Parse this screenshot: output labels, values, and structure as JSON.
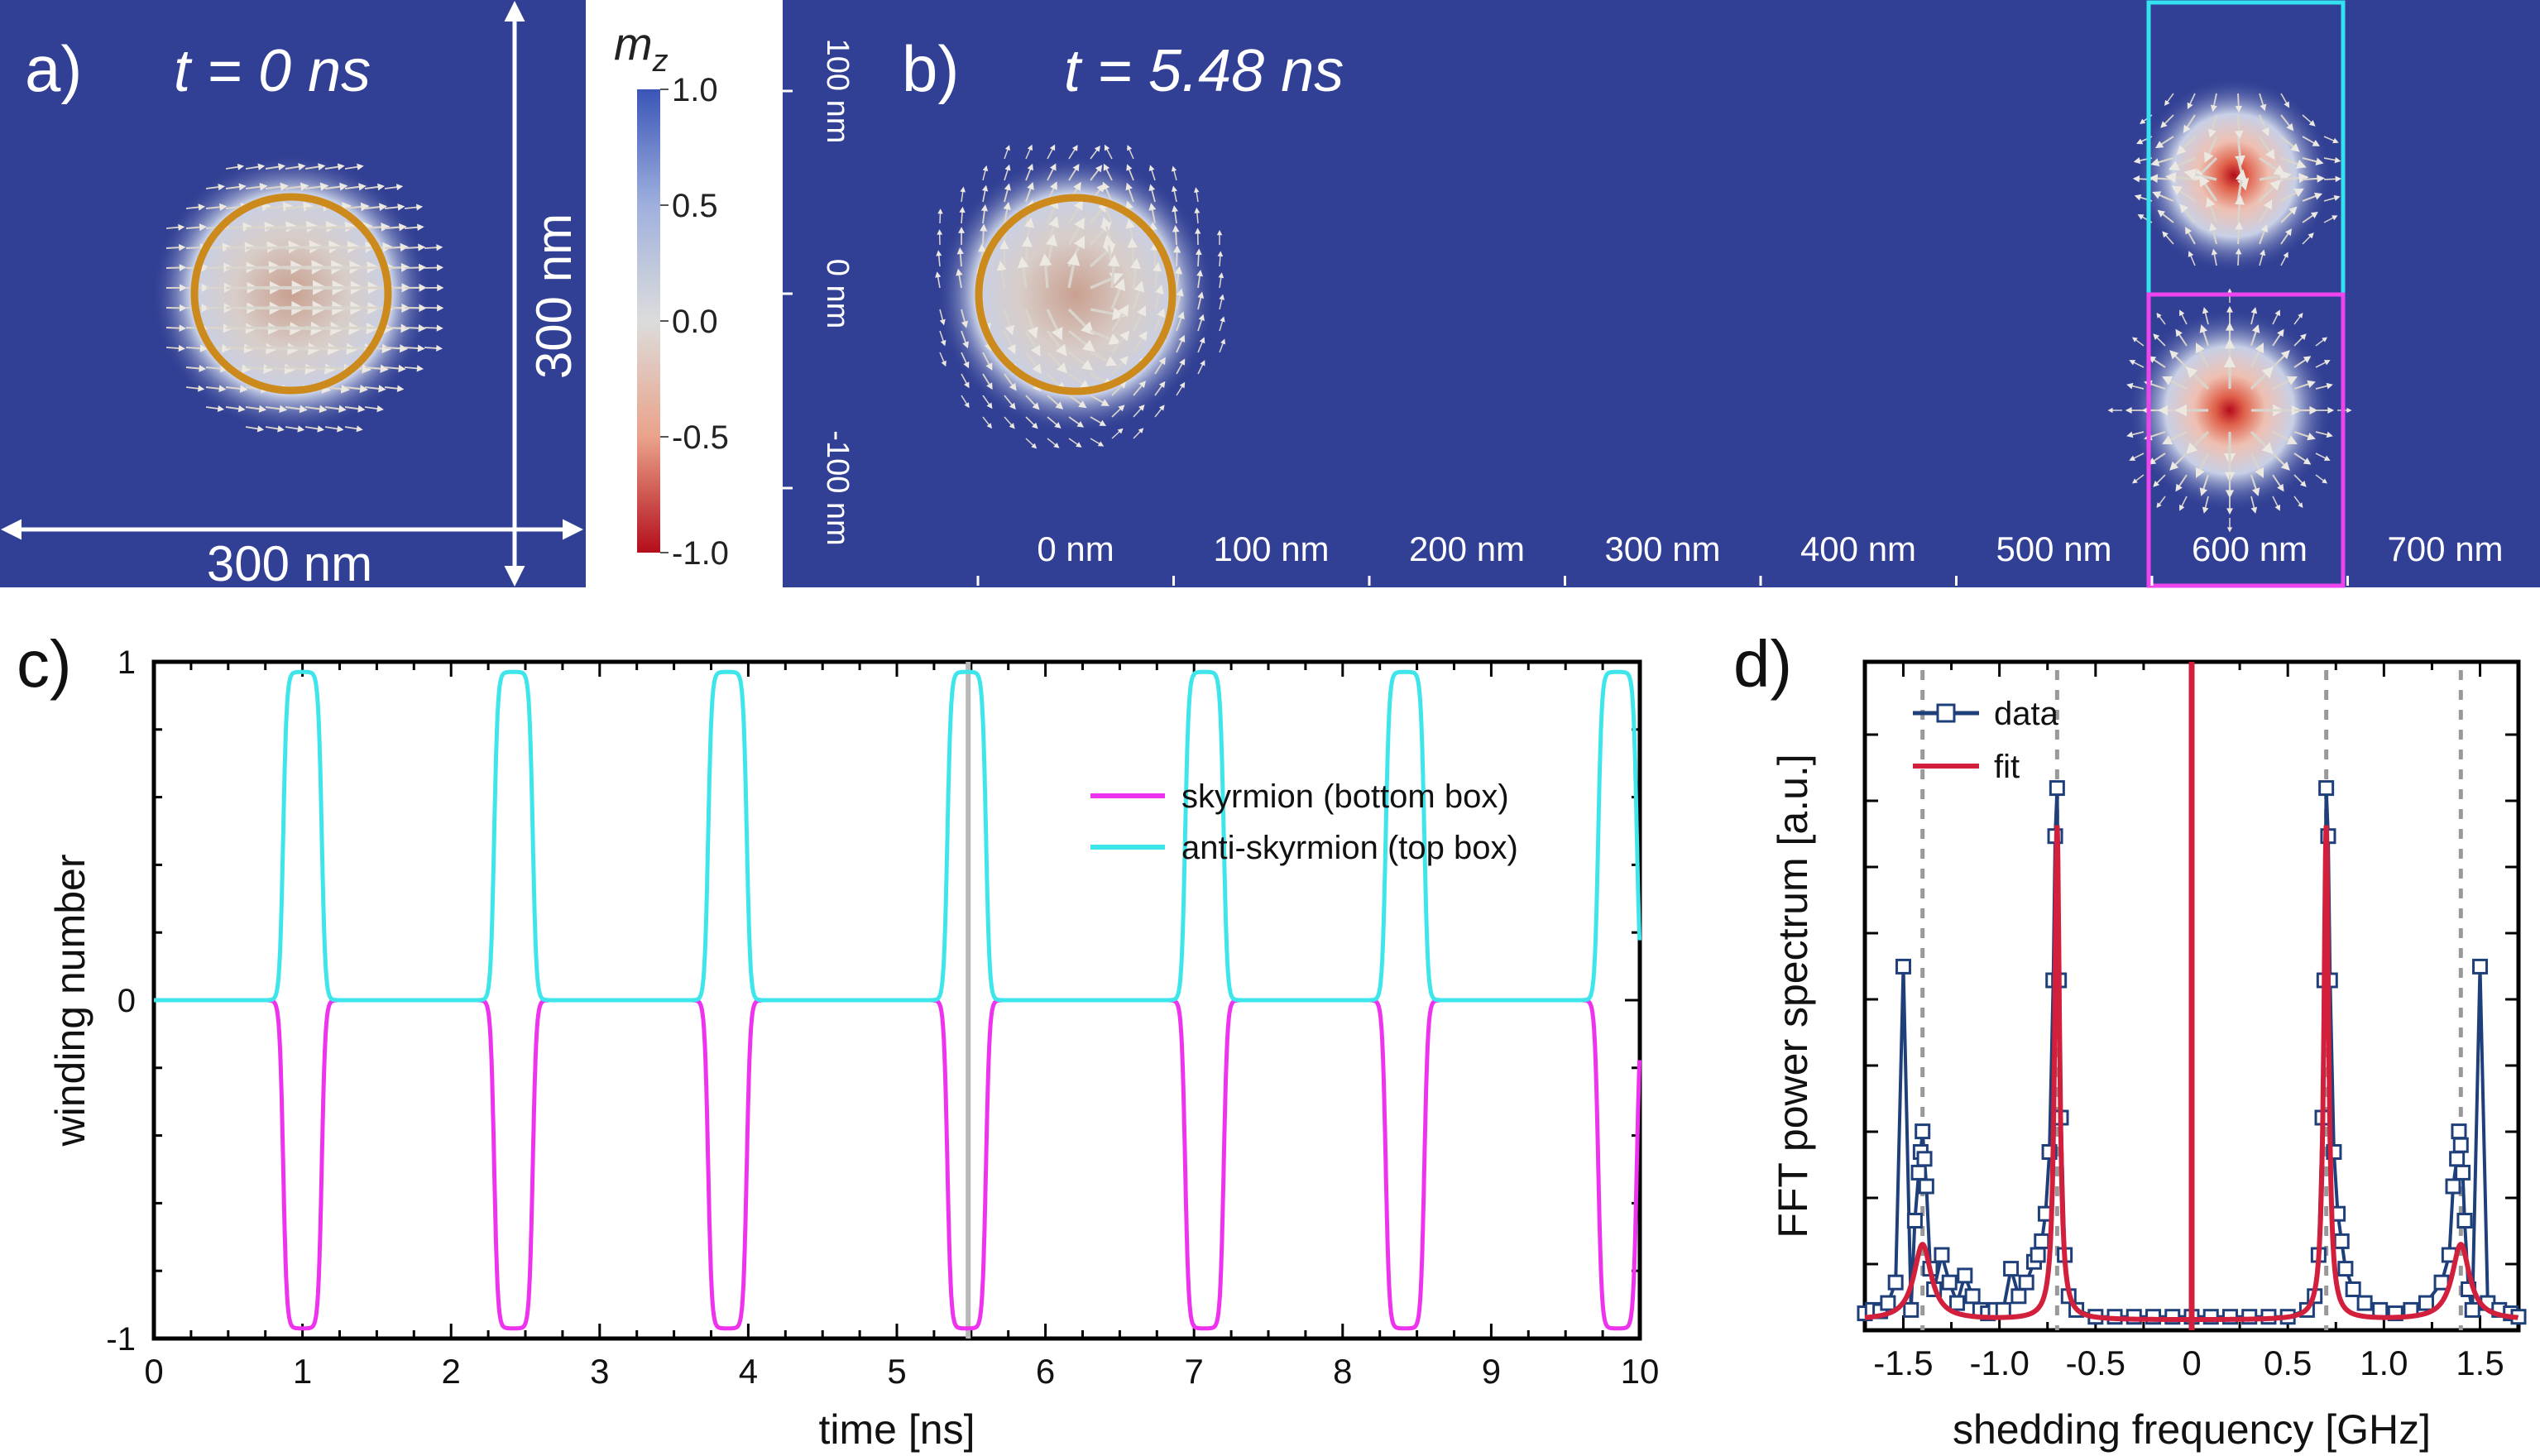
{
  "panel_a": {
    "label": "a)",
    "time_label": "t = 0 ns",
    "width_label": "300 nm",
    "height_label": "300 nm"
  },
  "colorbar": {
    "title": "mz",
    "ticks": [
      "1.0",
      "0.5",
      "0.0",
      "-0.5",
      "-1.0"
    ],
    "colors": {
      "top": "#3a55b8",
      "mid": "#dcdcdc",
      "bottom": "#b40d1b"
    }
  },
  "panel_b": {
    "label": "b)",
    "time_label": "t = 5.48 ns",
    "y_ticks": [
      "100 nm",
      "0 nm",
      "-100 nm"
    ],
    "x_ticks": [
      "0 nm",
      "100 nm",
      "200 nm",
      "300 nm",
      "400 nm",
      "500 nm",
      "600 nm",
      "700 nm"
    ],
    "top_box_color": "#33e2ee",
    "bottom_box_color": "#ee44ee"
  },
  "chart_data": [
    {
      "panel": "c)",
      "type": "line",
      "xlabel": "time [ns]",
      "ylabel": "winding number",
      "xlim": [
        0,
        10
      ],
      "ylim": [
        -1,
        1
      ],
      "x_ticks": [
        "0",
        "1",
        "2",
        "3",
        "4",
        "5",
        "6",
        "7",
        "8",
        "9",
        "10"
      ],
      "y_ticks": [
        "1",
        "0",
        "-1"
      ],
      "pulse_times": [
        1.0,
        2.42,
        3.86,
        5.47,
        7.07,
        8.42,
        9.85
      ],
      "pulse_level": 0.97,
      "marker_time": 5.48,
      "series": [
        {
          "name": "skyrmion (bottom box)",
          "color": "#ee33ee",
          "sign": -1
        },
        {
          "name": "anti-skyrmion (top box)",
          "color": "#3ee6ec",
          "sign": 1
        }
      ],
      "legend": "right"
    },
    {
      "panel": "d)",
      "type": "line",
      "xlabel": "shedding frequency [GHz]",
      "ylabel": "FFT power spectrum [a.u.]",
      "xlim": [
        -1.7,
        1.7
      ],
      "x_ticks": [
        "-1.5",
        "-1.0",
        "-0.5",
        "0",
        "0.5",
        "1.0",
        "1.5"
      ],
      "dashed_lines_x": [
        -1.4,
        -0.7,
        0.7,
        1.4
      ],
      "legend": "top-left",
      "series": [
        {
          "name": "data",
          "color": "#1f3f7a",
          "x": [
            -1.7,
            -1.66,
            -1.62,
            -1.58,
            -1.54,
            -1.5,
            -1.46,
            -1.44,
            -1.42,
            -1.41,
            -1.4,
            -1.39,
            -1.38,
            -1.36,
            -1.34,
            -1.3,
            -1.26,
            -1.22,
            -1.18,
            -1.14,
            -1.1,
            -1.06,
            -1.02,
            -0.98,
            -0.94,
            -0.9,
            -0.86,
            -0.82,
            -0.8,
            -0.78,
            -0.76,
            -0.74,
            -0.72,
            -0.71,
            -0.7,
            -0.69,
            -0.68,
            -0.66,
            -0.64,
            -0.6,
            -0.5,
            -0.4,
            -0.3,
            -0.2,
            -0.1,
            0,
            0.1,
            0.2,
            0.3,
            0.4,
            0.5,
            0.6,
            0.64,
            0.66,
            0.68,
            0.69,
            0.7,
            0.71,
            0.72,
            0.74,
            0.76,
            0.78,
            0.8,
            0.84,
            0.9,
            0.98,
            1.06,
            1.14,
            1.22,
            1.3,
            1.34,
            1.36,
            1.38,
            1.39,
            1.4,
            1.41,
            1.42,
            1.44,
            1.46,
            1.5,
            1.54,
            1.6,
            1.66,
            1.7
          ],
          "y": [
            0.015,
            0.02,
            0.018,
            0.03,
            0.06,
            0.52,
            0.02,
            0.15,
            0.22,
            0.25,
            0.28,
            0.24,
            0.2,
            0.08,
            0.05,
            0.1,
            0.06,
            0.03,
            0.07,
            0.04,
            0.02,
            0.015,
            0.02,
            0.02,
            0.08,
            0.04,
            0.06,
            0.09,
            0.1,
            0.12,
            0.16,
            0.25,
            0.5,
            0.71,
            0.78,
            0.5,
            0.3,
            0.1,
            0.04,
            0.02,
            0.01,
            0.01,
            0.01,
            0.01,
            0.01,
            0.01,
            0.01,
            0.01,
            0.01,
            0.01,
            0.01,
            0.02,
            0.04,
            0.1,
            0.3,
            0.5,
            0.78,
            0.71,
            0.5,
            0.25,
            0.16,
            0.12,
            0.08,
            0.05,
            0.03,
            0.02,
            0.015,
            0.02,
            0.03,
            0.06,
            0.1,
            0.2,
            0.24,
            0.28,
            0.26,
            0.22,
            0.15,
            0.05,
            0.02,
            0.52,
            0.03,
            0.02,
            0.015,
            0.01
          ]
        },
        {
          "name": "fit",
          "color": "#d21f3c",
          "model": "lorentzian peaks",
          "peaks": [
            {
              "x0": -1.4,
              "amp": 0.11,
              "width": 0.055
            },
            {
              "x0": -0.7,
              "amp": 0.72,
              "width": 0.015
            },
            {
              "x0": 0.7,
              "amp": 0.72,
              "width": 0.015
            },
            {
              "x0": 1.4,
              "amp": 0.11,
              "width": 0.055
            }
          ],
          "baseline": 0.005,
          "center_line_x": 0
        }
      ]
    }
  ]
}
